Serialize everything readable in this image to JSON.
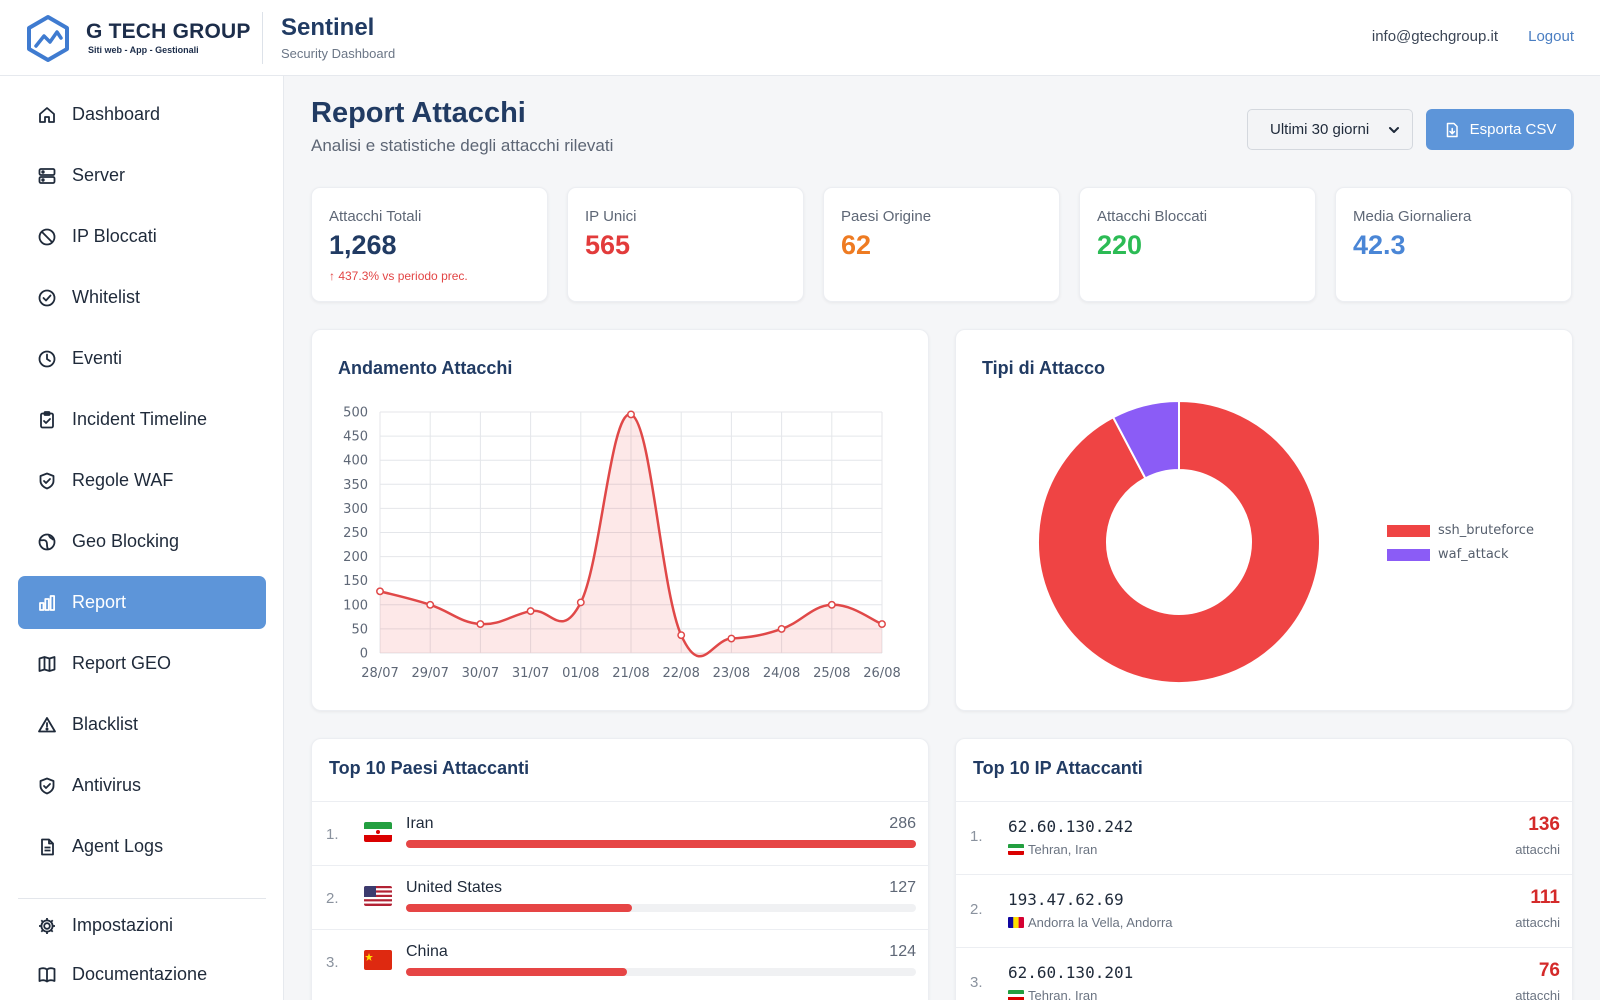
{
  "header": {
    "brand_name": "G TECH GROUP",
    "brand_tagline": "Siti web - App - Gestionali",
    "app_title": "Sentinel",
    "app_subtitle": "Security Dashboard",
    "user_email": "info@gtechgroup.it",
    "logout_label": "Logout"
  },
  "sidebar": {
    "items": [
      {
        "label": "Dashboard",
        "icon": "home-icon"
      },
      {
        "label": "Server",
        "icon": "server-icon"
      },
      {
        "label": "IP Bloccati",
        "icon": "ban-icon"
      },
      {
        "label": "Whitelist",
        "icon": "check-circle-icon"
      },
      {
        "label": "Eventi",
        "icon": "clock-icon"
      },
      {
        "label": "Incident Timeline",
        "icon": "clipboard-check-icon"
      },
      {
        "label": "Regole WAF",
        "icon": "shield-check-icon"
      },
      {
        "label": "Geo Blocking",
        "icon": "globe-icon"
      },
      {
        "label": "Report",
        "icon": "bar-chart-icon"
      },
      {
        "label": "Report GEO",
        "icon": "map-icon"
      },
      {
        "label": "Blacklist",
        "icon": "warning-icon"
      },
      {
        "label": "Antivirus",
        "icon": "shield-check-icon"
      },
      {
        "label": "Agent Logs",
        "icon": "document-icon"
      },
      {
        "label": "Impostazioni",
        "icon": "gear-icon"
      },
      {
        "label": "Documentazione",
        "icon": "book-icon"
      }
    ],
    "active_index": 8
  },
  "page": {
    "title": "Report Attacchi",
    "subtitle": "Analisi e statistiche degli attacchi rilevati",
    "period_selected": "Ultimi 30 giorni",
    "export_label": "Esporta CSV"
  },
  "stats": [
    {
      "label": "Attacchi Totali",
      "value": "1,268",
      "color": "#213b63",
      "delta": "↑ 437.3% vs periodo prec."
    },
    {
      "label": "IP Unici",
      "value": "565",
      "color": "#e23b3b"
    },
    {
      "label": "Paesi Origine",
      "value": "62",
      "color": "#ee7b22"
    },
    {
      "label": "Attacchi Bloccati",
      "value": "220",
      "color": "#2cbb55"
    },
    {
      "label": "Media Giornaliera",
      "value": "42.3",
      "color": "#4a86d6"
    }
  ],
  "trend_panel": {
    "title": "Andamento Attacchi"
  },
  "types_panel": {
    "title": "Tipi di Attacco"
  },
  "chart_data": [
    {
      "type": "line",
      "title": "Andamento Attacchi",
      "x": [
        "28/07",
        "29/07",
        "30/07",
        "31/07",
        "01/08",
        "21/08",
        "22/08",
        "23/08",
        "24/08",
        "25/08",
        "26/08"
      ],
      "series": [
        {
          "values": [
            128,
            100,
            60,
            87,
            105,
            495,
            37,
            30,
            50,
            100,
            60
          ],
          "color": "#e04848"
        }
      ],
      "ylim": [
        0,
        500
      ],
      "yticks": [
        0,
        50,
        100,
        150,
        200,
        250,
        300,
        350,
        400,
        450,
        500
      ],
      "grid": true,
      "fill": true
    },
    {
      "type": "pie",
      "title": "Tipi di Attacco",
      "donut": true,
      "categories": [
        "ssh_bruteforce",
        "waf_attack"
      ],
      "values": [
        1170,
        98
      ],
      "colors": [
        "#ef4444",
        "#8b5cf6"
      ],
      "legend": "right"
    }
  ],
  "countries_panel": {
    "title": "Top 10 Paesi Attaccanti",
    "rows": [
      {
        "rank": "1.",
        "name": "Iran",
        "count": "286",
        "value": 286,
        "flag": "iran"
      },
      {
        "rank": "2.",
        "name": "United States",
        "count": "127",
        "value": 127,
        "flag": "usa"
      },
      {
        "rank": "3.",
        "name": "China",
        "count": "124",
        "value": 124,
        "flag": "china"
      }
    ],
    "max": 286
  },
  "ips_panel": {
    "title": "Top 10 IP Attaccanti",
    "count_label": "attacchi",
    "rows": [
      {
        "rank": "1.",
        "ip": "62.60.130.242",
        "location": "Tehran, Iran",
        "count": "136",
        "flag": "iran"
      },
      {
        "rank": "2.",
        "ip": "193.47.62.69",
        "location": "Andorra la Vella, Andorra",
        "count": "111",
        "flag": "andorra"
      },
      {
        "rank": "3.",
        "ip": "62.60.130.201",
        "location": "Tehran, Iran",
        "count": "76",
        "flag": "iran"
      }
    ]
  }
}
